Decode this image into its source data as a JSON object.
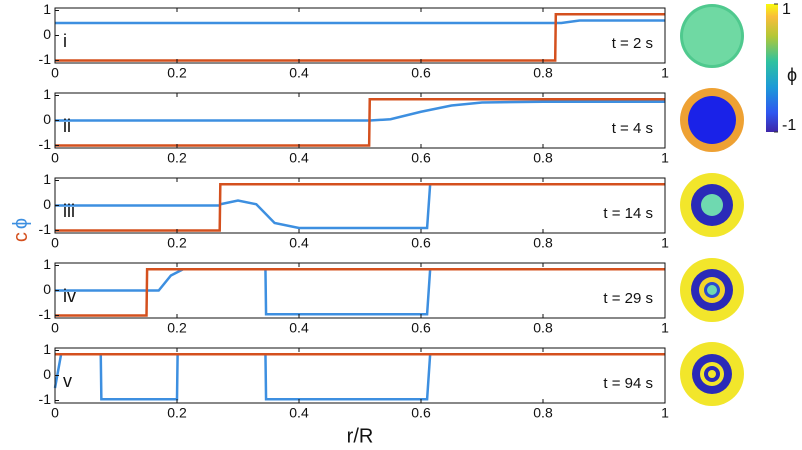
{
  "xlabel": "r/R",
  "ylabel": [
    {
      "text": "c",
      "color": "#d4501e"
    },
    {
      "text": "ϕ",
      "color": "#3d8fe0"
    }
  ],
  "colorbar": {
    "label": "ϕ",
    "lim": [
      -1,
      1
    ],
    "ticks": [
      -1,
      1
    ]
  },
  "chart_data": [
    {
      "type": "line",
      "label": "i",
      "annotation": "t = 2 s",
      "xlim": [
        0,
        1
      ],
      "ylim": [
        -1.1,
        1.1
      ],
      "xticks": [
        0,
        0.2,
        0.4,
        0.6,
        0.8,
        1
      ],
      "yticks": [
        -1,
        0,
        1
      ],
      "x": [
        0,
        0.82,
        0.821,
        0.83,
        0.86,
        1
      ],
      "series": [
        {
          "color": "#3d8fe0",
          "values": [
            0.5,
            0.5,
            0.5,
            0.5,
            0.6,
            0.6
          ]
        },
        {
          "color": "#d4501e",
          "values": [
            -1,
            -1,
            0.85,
            0.85,
            0.85,
            0.85
          ]
        }
      ]
    },
    {
      "type": "line",
      "label": "ii",
      "annotation": "t = 4 s",
      "xlim": [
        0,
        1
      ],
      "ylim": [
        -1.1,
        1.1
      ],
      "xticks": [
        0,
        0.2,
        0.4,
        0.6,
        0.8,
        1
      ],
      "yticks": [
        -1,
        0,
        1
      ],
      "x": [
        0,
        0.515,
        0.516,
        0.55,
        0.6,
        0.65,
        0.7,
        0.8,
        1
      ],
      "series": [
        {
          "color": "#3d8fe0",
          "values": [
            0,
            0,
            0,
            0.05,
            0.35,
            0.6,
            0.72,
            0.75,
            0.75
          ]
        },
        {
          "color": "#d4501e",
          "values": [
            -1,
            -1,
            0.85,
            0.85,
            0.85,
            0.85,
            0.85,
            0.85,
            0.85
          ]
        }
      ]
    },
    {
      "type": "line",
      "label": "iii",
      "annotation": "t = 14 s",
      "xlim": [
        0,
        1
      ],
      "ylim": [
        -1.1,
        1.1
      ],
      "xticks": [
        0,
        0.2,
        0.4,
        0.6,
        0.8,
        1
      ],
      "yticks": [
        -1,
        0,
        1
      ],
      "x": [
        0,
        0.27,
        0.271,
        0.3,
        0.33,
        0.36,
        0.4,
        0.61,
        0.615,
        1
      ],
      "series": [
        {
          "color": "#3d8fe0",
          "values": [
            0,
            0,
            0.05,
            0.2,
            0.05,
            -0.7,
            -0.9,
            -0.9,
            0.85,
            0.85
          ]
        },
        {
          "color": "#d4501e",
          "values": [
            -1,
            -1,
            0.85,
            0.85,
            0.85,
            0.85,
            0.85,
            0.85,
            0.85,
            0.85
          ]
        }
      ]
    },
    {
      "type": "line",
      "label": "iv",
      "annotation": "t = 29 s",
      "xlim": [
        0,
        1
      ],
      "ylim": [
        -1.1,
        1.1
      ],
      "xticks": [
        0,
        0.2,
        0.4,
        0.6,
        0.8,
        1
      ],
      "yticks": [
        -1,
        0,
        1
      ],
      "x": [
        0,
        0.15,
        0.151,
        0.17,
        0.19,
        0.21,
        0.345,
        0.346,
        0.61,
        0.615,
        1
      ],
      "series": [
        {
          "color": "#3d8fe0",
          "values": [
            0,
            0,
            0,
            0,
            0.6,
            0.85,
            0.85,
            -0.95,
            -0.95,
            0.85,
            0.85
          ]
        },
        {
          "color": "#d4501e",
          "values": [
            -1,
            -1,
            0.85,
            0.85,
            0.85,
            0.85,
            0.85,
            0.85,
            0.85,
            0.85,
            0.85
          ]
        }
      ]
    },
    {
      "type": "line",
      "label": "v",
      "annotation": "t = 94 s",
      "xlim": [
        0,
        1
      ],
      "ylim": [
        -1.1,
        1.1
      ],
      "xticks": [
        0,
        0.2,
        0.4,
        0.6,
        0.8,
        1
      ],
      "yticks": [
        -1,
        0,
        1
      ],
      "x": [
        0,
        0.01,
        0.075,
        0.076,
        0.2,
        0.201,
        0.345,
        0.346,
        0.61,
        0.615,
        1
      ],
      "series": [
        {
          "color": "#3d8fe0",
          "values": [
            -0.5,
            0.85,
            0.85,
            -0.95,
            -0.95,
            0.85,
            0.85,
            -0.95,
            -0.95,
            0.85,
            0.85
          ]
        },
        {
          "color": "#d4501e",
          "values": [
            0.85,
            0.85,
            0.85,
            0.85,
            0.85,
            0.85,
            0.85,
            0.85,
            0.85,
            0.85,
            0.85
          ]
        }
      ]
    }
  ]
}
